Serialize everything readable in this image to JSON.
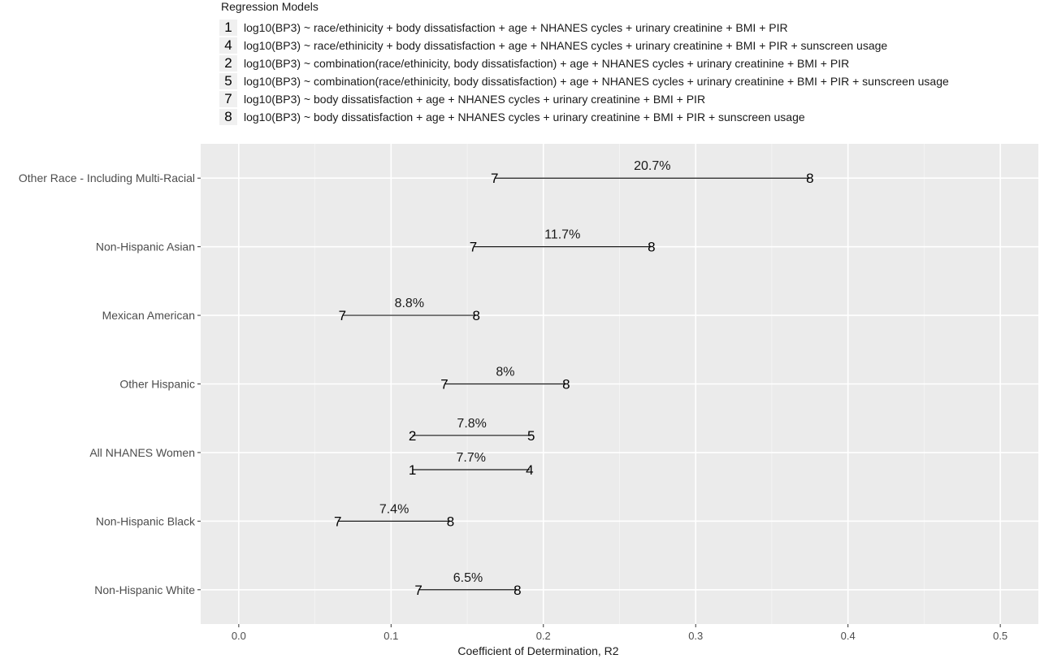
{
  "legend": {
    "title": "Regression Models",
    "items": [
      {
        "key": "1",
        "label": "log10(BP3) ~ race/ethinicity + body dissatisfaction + age + NHANES cycles + urinary creatinine + BMI + PIR"
      },
      {
        "key": "4",
        "label": "log10(BP3) ~ race/ethinicity + body dissatisfaction + age + NHANES cycles + urinary creatinine + BMI + PIR + sunscreen usage"
      },
      {
        "key": "2",
        "label": "log10(BP3) ~ combination(race/ethinicity, body dissatisfaction) + age + NHANES cycles + urinary creatinine + BMI + PIR"
      },
      {
        "key": "5",
        "label": "log10(BP3) ~ combination(race/ethinicity, body dissatisfaction) + age + NHANES cycles + urinary creatinine + BMI + PIR + sunscreen usage"
      },
      {
        "key": "7",
        "label": "log10(BP3) ~ body dissatisfaction + age + NHANES cycles + urinary creatinine + BMI + PIR"
      },
      {
        "key": "8",
        "label": "log10(BP3) ~ body dissatisfaction + age + NHANES cycles + urinary creatinine + BMI + PIR + sunscreen usage"
      }
    ]
  },
  "chart_data": {
    "type": "dumbbell",
    "xlabel": "Coefficient of Determination, R2",
    "ylabel": "",
    "xlim": [
      -0.025,
      0.525
    ],
    "xticks": [
      "0.0",
      "0.1",
      "0.2",
      "0.3",
      "0.4",
      "0.5"
    ],
    "grid": true,
    "legend_position": "top",
    "categories": [
      "Other Race - Including Multi-Racial",
      "Non-Hispanic Asian",
      "Mexican American",
      "Other Hispanic",
      "All NHANES Women",
      "Non-Hispanic Black",
      "Non-Hispanic White"
    ],
    "segments": [
      {
        "category": "Other Race - Including Multi-Racial",
        "offset": 0,
        "from_model": "7",
        "to_model": "8",
        "from": 0.168,
        "to": 0.375,
        "label": "20.7%"
      },
      {
        "category": "Non-Hispanic Asian",
        "offset": 0,
        "from_model": "7",
        "to_model": "8",
        "from": 0.154,
        "to": 0.271,
        "label": "11.7%"
      },
      {
        "category": "Mexican American",
        "offset": 0,
        "from_model": "7",
        "to_model": "8",
        "from": 0.068,
        "to": 0.156,
        "label": "8.8%"
      },
      {
        "category": "Other Hispanic",
        "offset": 0,
        "from_model": "7",
        "to_model": "8",
        "from": 0.135,
        "to": 0.215,
        "label": "8%"
      },
      {
        "category": "All NHANES Women",
        "offset": 0.25,
        "from_model": "2",
        "to_model": "5",
        "from": 0.114,
        "to": 0.192,
        "label": "7.8%"
      },
      {
        "category": "All NHANES Women",
        "offset": -0.25,
        "from_model": "1",
        "to_model": "4",
        "from": 0.114,
        "to": 0.191,
        "label": "7.7%"
      },
      {
        "category": "Non-Hispanic Black",
        "offset": 0,
        "from_model": "7",
        "to_model": "8",
        "from": 0.065,
        "to": 0.139,
        "label": "7.4%"
      },
      {
        "category": "Non-Hispanic White",
        "offset": 0,
        "from_model": "7",
        "to_model": "8",
        "from": 0.118,
        "to": 0.183,
        "label": "6.5%"
      }
    ]
  }
}
